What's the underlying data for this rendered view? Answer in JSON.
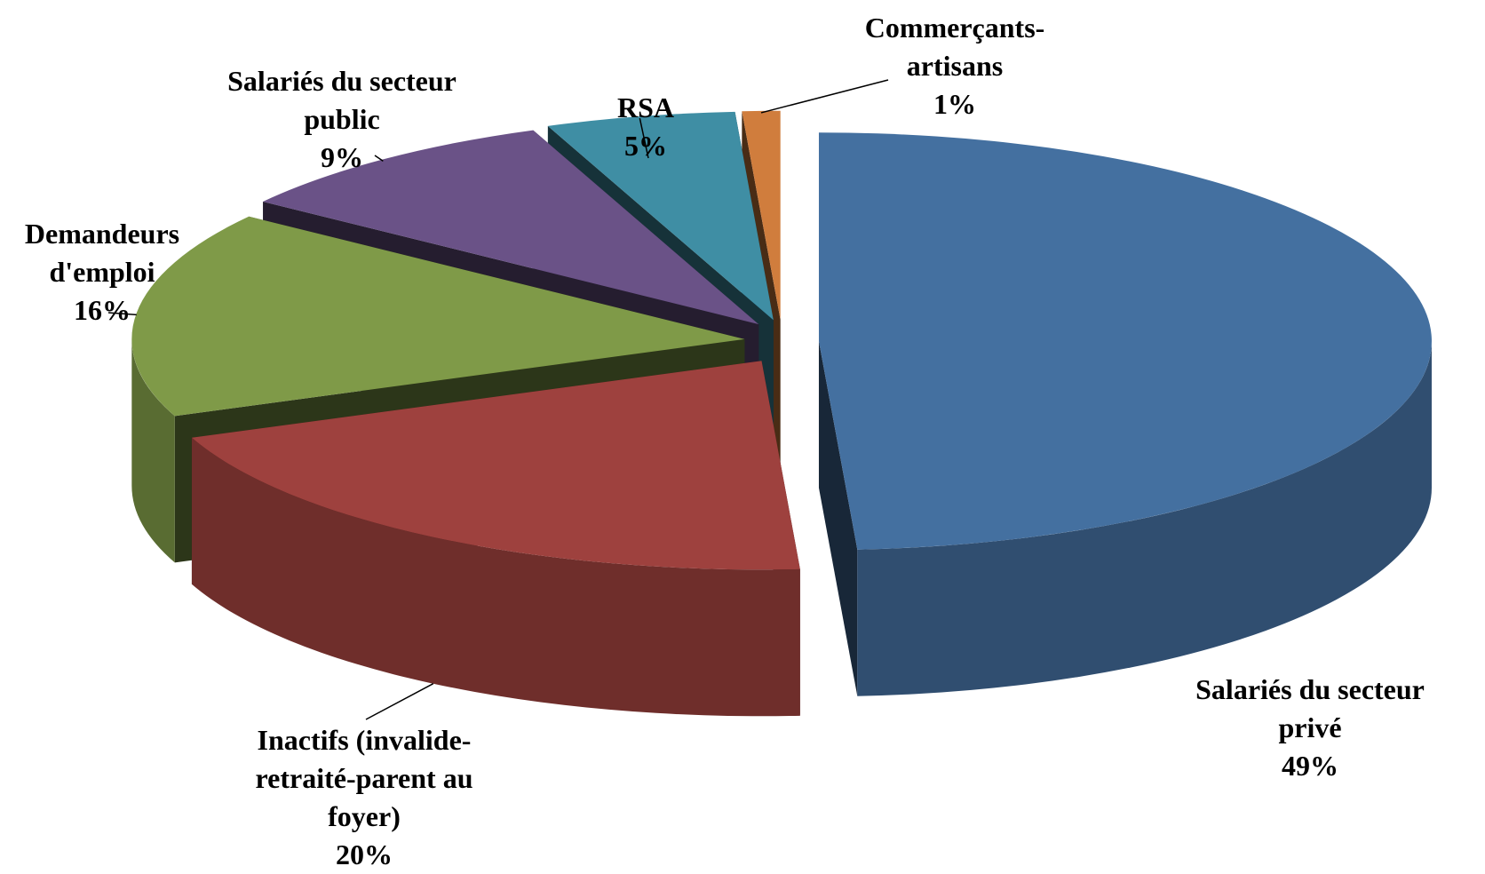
{
  "chart_data": {
    "type": "pie",
    "categories": [
      "Salariés du secteur privé",
      "Inactifs (invalide-retraité-parent au foyer)",
      "Demandeurs d'emploi",
      "Salariés du secteur public",
      "RSA",
      "Commerçants-artisans"
    ],
    "values": [
      49,
      20,
      16,
      9,
      5,
      1
    ],
    "value_labels": [
      "49%",
      "20%",
      "16%",
      "9%",
      "5%",
      "1%"
    ],
    "colors": [
      "#4470a0",
      "#9e413e",
      "#7f9a48",
      "#6a5287",
      "#3f8ea4",
      "#d07d3d"
    ]
  }
}
